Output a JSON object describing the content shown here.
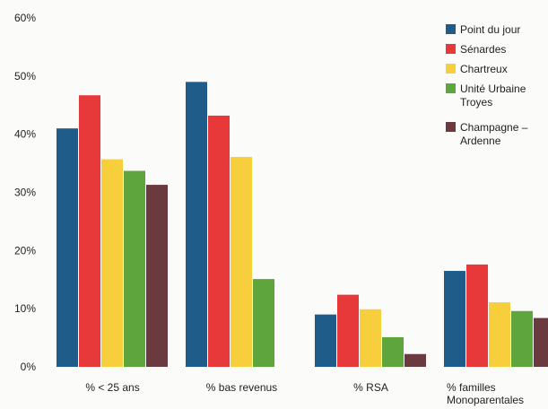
{
  "chart_data": {
    "type": "bar",
    "categories": [
      [
        "% < 25 ans"
      ],
      [
        "% bas revenus"
      ],
      [
        "% RSA"
      ],
      [
        "% familles",
        "Monoparentales"
      ]
    ],
    "series": [
      {
        "name": [
          "Point du jour"
        ],
        "color": "#1f5c8a",
        "values": [
          41,
          49,
          9,
          16.5
        ]
      },
      {
        "name": [
          "Sénardes"
        ],
        "color": "#e8393a",
        "values": [
          46.7,
          43.2,
          12.4,
          17.6
        ]
      },
      {
        "name": [
          "Chartreux"
        ],
        "color": "#f7cf3d",
        "values": [
          35.7,
          36.1,
          9.9,
          11.1
        ]
      },
      {
        "name": [
          "Unité Urbaine",
          "Troyes"
        ],
        "color": "#5ea63b",
        "values": [
          33.7,
          15.1,
          5.1,
          9.6
        ]
      },
      {
        "name": [
          "Champagne –",
          "Ardenne"
        ],
        "color": "#6b3a3f",
        "values": [
          31.3,
          null,
          2.2,
          8.4
        ]
      }
    ],
    "ylim": [
      0,
      60
    ],
    "yticks": [
      0,
      10,
      20,
      30,
      40,
      50,
      60
    ],
    "ytick_labels": [
      "0%",
      "10%",
      "20%",
      "30%",
      "40%",
      "50%",
      "60%"
    ],
    "grid": false,
    "legend_position": "top-right"
  }
}
